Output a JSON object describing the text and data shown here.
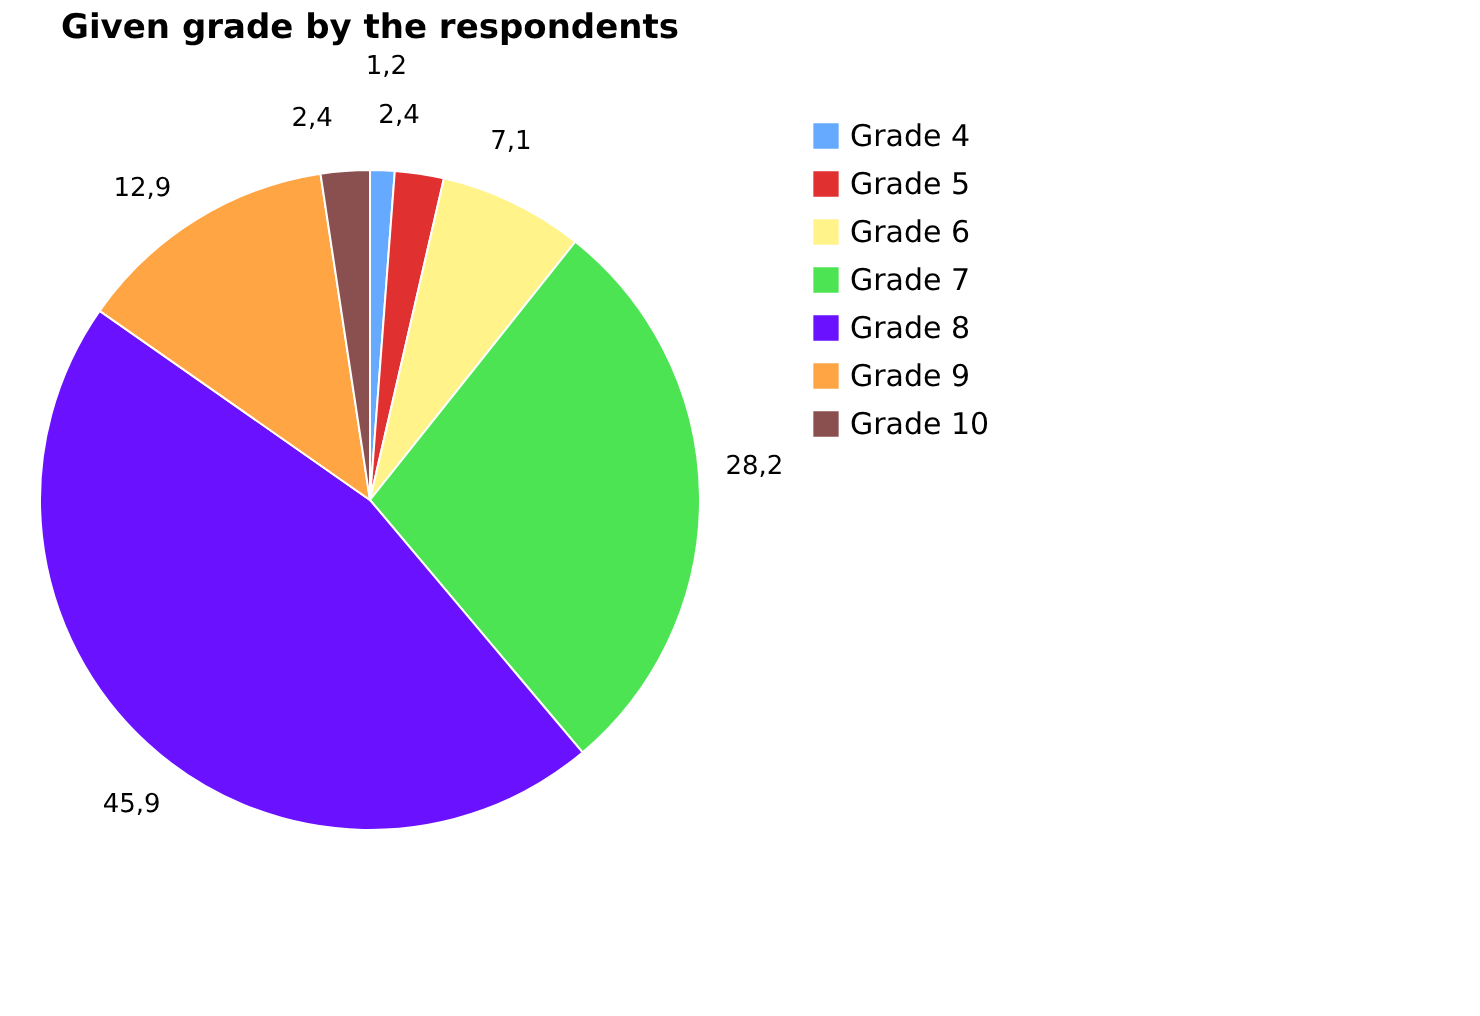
{
  "chart_data": {
    "type": "pie",
    "title": "Given grade by the respondents",
    "categories": [
      "Grade 4",
      "Grade 5",
      "Grade 6",
      "Grade 7",
      "Grade 8",
      "Grade 9",
      "Grade 10"
    ],
    "values": [
      1.2,
      2.4,
      7.1,
      28.2,
      45.9,
      12.9,
      2.4
    ],
    "value_labels": [
      "1,2",
      "2,4",
      "7,1",
      "28,2",
      "45,9",
      "12,9",
      "2,4"
    ],
    "colors": [
      "#66aaff",
      "#e03030",
      "#fff38a",
      "#4de454",
      "#6a11ff",
      "#ffa544",
      "#8a5050"
    ],
    "legend": "right"
  }
}
